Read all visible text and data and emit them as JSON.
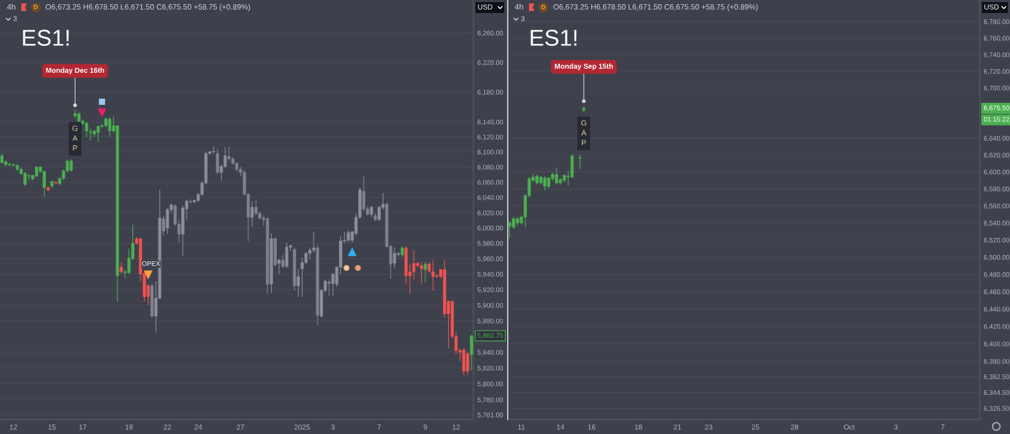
{
  "chart_data": [
    {
      "type": "candlestick",
      "title": "ES1!",
      "subtitle": "4h",
      "ylabel": "USD",
      "log": true,
      "grid": "y",
      "ylim": [
        5755,
        6305
      ],
      "yticks": [
        {
          "value": 6260,
          "label": "6,260.00"
        },
        {
          "value": 6220,
          "label": "6,220.00"
        },
        {
          "value": 6180,
          "label": "6,180.00"
        },
        {
          "value": 6140,
          "label": "6,140.00"
        },
        {
          "value": 6120,
          "label": "6,120.00"
        },
        {
          "value": 6100,
          "label": "6,100.00"
        },
        {
          "value": 6080,
          "label": "6,080.00"
        },
        {
          "value": 6060,
          "label": "6,060.00"
        },
        {
          "value": 6040,
          "label": "6,040.00"
        },
        {
          "value": 6020,
          "label": "6,020.00"
        },
        {
          "value": 6000,
          "label": "6,000.00"
        },
        {
          "value": 5980,
          "label": "5,980.00"
        },
        {
          "value": 5960,
          "label": "5,960.00"
        },
        {
          "value": 5940,
          "label": "5,940.00"
        },
        {
          "value": 5920,
          "label": "5,920.00"
        },
        {
          "value": 5900,
          "label": "5,900.00"
        },
        {
          "value": 5880,
          "label": "5,880.00"
        },
        {
          "value": 5840,
          "label": "5,840.00"
        },
        {
          "value": 5820,
          "label": "5,820.00"
        },
        {
          "value": 5800,
          "label": "5,800.00"
        },
        {
          "value": 5780,
          "label": "5,780.00"
        },
        {
          "value": 5761,
          "label": "5,761.00"
        }
      ],
      "categories": [
        null,
        null,
        null,
        "12",
        null,
        null,
        null,
        null,
        null,
        null,
        null,
        null,
        null,
        "15",
        null,
        null,
        null,
        null,
        null,
        null,
        null,
        "17",
        null,
        null,
        null,
        null,
        null,
        null,
        null,
        null,
        null,
        null,
        null,
        "19",
        null,
        null,
        null,
        null,
        null,
        null,
        null,
        null,
        null,
        "22",
        null,
        null,
        null,
        null,
        null,
        null,
        null,
        "24",
        null,
        null,
        null,
        null,
        null,
        null,
        null,
        null,
        null,
        null,
        "27",
        null,
        null,
        null,
        null,
        null,
        null,
        null,
        null,
        null,
        null,
        null,
        null,
        null,
        null,
        null,
        "2025",
        null,
        null,
        null,
        null,
        null,
        null,
        null,
        "3",
        null,
        null,
        null,
        null,
        null,
        null,
        null,
        null,
        null,
        null,
        null,
        "7",
        null,
        null,
        null,
        null,
        null,
        null,
        null,
        null,
        null,
        null,
        null,
        "9",
        null,
        null,
        null,
        null,
        null,
        null,
        null,
        "12",
        null,
        null,
        null,
        null
      ],
      "ohlc": [
        [
          6086,
          6098,
          6084,
          6095
        ],
        [
          6083,
          6089,
          6081,
          6087
        ],
        [
          6083,
          6085,
          6081,
          6084
        ],
        [
          6082,
          6085,
          6081,
          6083
        ],
        [
          6077,
          6084,
          6075,
          6082
        ],
        [
          6071,
          6079,
          6070,
          6077
        ],
        [
          6057,
          6073,
          6055,
          6072
        ],
        [
          6068,
          6070,
          6062,
          6069
        ],
        [
          6064,
          6070,
          6063,
          6069
        ],
        [
          6068,
          6081,
          6067,
          6080
        ],
        [
          6074,
          6081,
          6073,
          6080
        ],
        [
          6053,
          6076,
          6041,
          6074
        ],
        [
          6053,
          6054,
          6048,
          6050
        ],
        [
          6055,
          6062,
          6052,
          6061
        ],
        [
          6060,
          6061,
          6057,
          6059
        ],
        [
          6058,
          6066,
          6056,
          6065
        ],
        [
          6065,
          6077,
          6063,
          6075
        ],
        [
          6075,
          6090,
          6073,
          6088
        ],
        [
          6076,
          6090,
          6074,
          6088
        ],
        [
          6148,
          6156,
          6145,
          6151
        ],
        [
          6141,
          6153,
          6140,
          6151
        ],
        [
          6138,
          6143,
          6136,
          6141
        ],
        [
          6128,
          6140,
          6120,
          6138
        ],
        [
          6126,
          6131,
          6115,
          6127
        ],
        [
          6124,
          6129,
          6120,
          6128
        ],
        [
          6126,
          6135,
          6113,
          6134
        ],
        [
          6134,
          6137,
          6132,
          6135
        ],
        [
          6135,
          6146,
          6133,
          6144
        ],
        [
          6128,
          6146,
          6120,
          6144
        ],
        [
          6128,
          6147,
          6126,
          6135
        ],
        [
          5938,
          6136,
          5905,
          6135
        ],
        [
          5949,
          5956,
          5940,
          5943
        ],
        [
          5942,
          5946,
          5935,
          5943
        ],
        [
          5942,
          5973,
          5940,
          5961
        ],
        [
          5960,
          6004,
          5958,
          5980
        ],
        [
          5986,
          5988,
          5978,
          5980
        ],
        [
          5986,
          5987,
          5931,
          5940
        ],
        [
          5941,
          5942,
          5905,
          5911
        ],
        [
          5925,
          5927,
          5900,
          5911
        ],
        [
          5925,
          5928,
          5884,
          5886
        ],
        [
          5886,
          5931,
          5865,
          5909
        ],
        [
          5909,
          6050,
          5908,
          6013
        ],
        [
          6012,
          6016,
          5990,
          5996
        ],
        [
          6000,
          6026,
          5992,
          6024
        ],
        [
          6024,
          6032,
          6020,
          6030
        ],
        [
          6029,
          6031,
          6003,
          6005
        ],
        [
          6005,
          6012,
          5981,
          5992
        ],
        [
          5992,
          6029,
          5964,
          6026
        ],
        [
          6025,
          6037,
          6011,
          6035
        ],
        [
          6035,
          6038,
          6032,
          6034
        ],
        [
          6034,
          6037,
          6032,
          6036
        ],
        [
          6036,
          6046,
          6034,
          6044
        ],
        [
          6044,
          6061,
          6042,
          6059
        ],
        [
          6059,
          6100,
          6057,
          6098
        ],
        [
          6098,
          6102,
          6096,
          6100
        ],
        [
          6100,
          6108,
          6098,
          6101
        ],
        [
          6098,
          6104,
          6070,
          6073
        ],
        [
          6073,
          6083,
          6062,
          6081
        ],
        [
          6081,
          6106,
          6079,
          6095
        ],
        [
          6094,
          6107,
          6088,
          6091
        ],
        [
          6091,
          6093,
          6083,
          6085
        ],
        [
          6085,
          6086,
          6075,
          6077
        ],
        [
          6077,
          6080,
          6068,
          6073
        ],
        [
          6073,
          6076,
          6043,
          6044
        ],
        [
          6044,
          6046,
          5983,
          6014
        ],
        [
          6014,
          6035,
          6002,
          6027
        ],
        [
          6027,
          6037,
          6016,
          6019
        ],
        [
          6019,
          6021,
          6011,
          6013
        ],
        [
          6013,
          6016,
          6003,
          6011
        ],
        [
          6012,
          6014,
          5915,
          5927
        ],
        [
          5927,
          5993,
          5916,
          5986
        ],
        [
          5986,
          5988,
          5950,
          5952
        ],
        [
          5954,
          5960,
          5940,
          5958
        ],
        [
          5958,
          5965,
          5948,
          5950
        ],
        [
          5950,
          5981,
          5948,
          5975
        ],
        [
          5975,
          5978,
          5970,
          5977
        ],
        [
          5972,
          5974,
          5919,
          5925
        ],
        [
          5925,
          5947,
          5911,
          5937
        ],
        [
          5947,
          5961,
          5911,
          5955
        ],
        [
          5955,
          5969,
          5953,
          5967
        ],
        [
          5967,
          5974,
          5959,
          5971
        ],
        [
          5971,
          5995,
          5968,
          5974
        ],
        [
          5974,
          5978,
          5874,
          5887
        ],
        [
          5886,
          5921,
          5884,
          5919
        ],
        [
          5919,
          5933,
          5916,
          5931
        ],
        [
          5930,
          5933,
          5912,
          5928
        ],
        [
          5928,
          5941,
          5912,
          5940
        ],
        [
          5927,
          5950,
          5924,
          5949
        ],
        [
          5949,
          5989,
          5940,
          5983
        ],
        [
          5983,
          5995,
          5980,
          5984
        ],
        [
          5984,
          5998,
          5982,
          5994
        ],
        [
          5984,
          5996,
          5981,
          5995
        ],
        [
          5993,
          6019,
          5990,
          6014
        ],
        [
          6014,
          6053,
          6012,
          6050
        ],
        [
          6048,
          6068,
          6022,
          6025
        ],
        [
          6025,
          6029,
          6016,
          6018
        ],
        [
          6018,
          6029,
          6014,
          6027
        ],
        [
          6016,
          6019,
          6009,
          6011
        ],
        [
          6011,
          6029,
          6009,
          6027
        ],
        [
          6027,
          6046,
          6024,
          6031
        ],
        [
          6031,
          6033,
          5974,
          5976
        ],
        [
          5976,
          5978,
          5934,
          5953
        ],
        [
          5954,
          5974,
          5947,
          5967
        ],
        [
          5967,
          5969,
          5963,
          5965
        ],
        [
          5965,
          5976,
          5962,
          5974
        ],
        [
          5974,
          5976,
          5927,
          5938
        ],
        [
          5943,
          5953,
          5915,
          5938
        ],
        [
          5954,
          5971,
          5933,
          5943
        ],
        [
          5954,
          5956,
          5949,
          5951
        ],
        [
          5951,
          5956,
          5928,
          5947
        ],
        [
          5946,
          5956,
          5930,
          5953
        ],
        [
          5953,
          5955,
          5942,
          5944
        ],
        [
          5943,
          5958,
          5919,
          5937
        ],
        [
          5938,
          5940,
          5935,
          5937
        ],
        [
          5946,
          5947,
          5935,
          5937
        ],
        [
          5946,
          5958,
          5884,
          5889
        ],
        [
          5905,
          5906,
          5845,
          5889
        ],
        [
          5905,
          5906,
          5858,
          5860
        ],
        [
          5860,
          5865,
          5837,
          5842
        ],
        [
          5842,
          5845,
          5829,
          5840
        ],
        [
          5843,
          5845,
          5811,
          5816
        ],
        [
          5838,
          5840,
          5811,
          5816
        ],
        [
          5837,
          5862,
          5817,
          5860.75
        ]
      ],
      "colors": [
        "#4caf50",
        "#4caf50",
        "#4caf50",
        "#4caf50",
        "#4caf50",
        "#4caf50",
        "#4caf50",
        "#4caf50",
        "#4caf50",
        "#4caf50",
        "#4caf50",
        "#4caf50",
        "#f05350",
        "#4caf50",
        "#f05350",
        "#4caf50",
        "#4caf50",
        "#4caf50",
        "#4caf50",
        "#4caf50",
        "#4caf50",
        "#4caf50",
        "#4caf50",
        "#4caf50",
        "#4caf50",
        "#4caf50",
        "#4caf50",
        "#4caf50",
        "#4caf50",
        "#4caf50",
        "#4caf50",
        "#f05350",
        "#4caf50",
        "#4caf50",
        "#4caf50",
        "#f05350",
        "#f05350",
        "#f05350",
        "#f05350",
        "#80838d",
        "#8c8f99",
        "#8c8f99",
        "#80838d",
        "#8c8f99",
        "#8c8f99",
        "#80838d",
        "#80838d",
        "#8c8f99",
        "#8c8f99",
        "#80838d",
        "#8c8f99",
        "#8c8f99",
        "#8c8f99",
        "#8c8f99",
        "#8c8f99",
        "#8c8f99",
        "#80838d",
        "#8c8f99",
        "#8c8f99",
        "#80838d",
        "#80838d",
        "#80838d",
        "#80838d",
        "#80838d",
        "#80838d",
        "#8c8f99",
        "#80838d",
        "#80838d",
        "#80838d",
        "#80838d",
        "#8c8f99",
        "#80838d",
        "#8c8f99",
        "#80838d",
        "#8c8f99",
        "#8c8f99",
        "#80838d",
        "#8c8f99",
        "#8c8f99",
        "#8c8f99",
        "#8c8f99",
        "#8c8f99",
        "#80838d",
        "#8c8f99",
        "#8c8f99",
        "#80838d",
        "#8c8f99",
        "#8c8f99",
        "#8c8f99",
        "#8c8f99",
        "#8c8f99",
        "#8c8f99",
        "#8c8f99",
        "#8c8f99",
        "#80838d",
        "#80838d",
        "#8c8f99",
        "#80838d",
        "#8c8f99",
        "#8c8f99",
        "#80838d",
        "#80838d",
        "#8c8f99",
        "#80838d",
        "#4caf50",
        "#f05350",
        "#f05350",
        "#f05350",
        "#f05350",
        "#f05350",
        "#4caf50",
        "#f05350",
        "#f05350",
        "#f05350",
        "#f05350",
        "#f05350",
        "#f05350",
        "#f05350",
        "#f05350",
        "#f05350",
        "#f05350",
        "#f05350",
        "#4caf50"
      ],
      "series": [
        {
          "type": "scatter",
          "color": "#e91e63",
          "marker": "triangle-down",
          "values": [
            null,
            null,
            null,
            null,
            null,
            null,
            null,
            null,
            null,
            null,
            null,
            null,
            null,
            null,
            null,
            null,
            null,
            null,
            null,
            null,
            null,
            null,
            null,
            null,
            null,
            null,
            6152,
            null,
            null,
            null,
            null,
            null,
            null,
            null,
            null,
            null,
            null,
            null,
            null,
            null,
            null,
            null,
            null,
            null,
            null,
            null,
            null,
            null,
            null,
            null,
            null,
            null,
            null,
            null,
            null,
            null,
            null,
            null,
            null,
            null,
            null,
            null,
            null,
            null,
            null,
            null,
            null,
            null,
            null,
            null,
            null,
            null,
            null,
            null,
            null,
            null,
            null,
            null,
            null,
            null,
            null,
            null,
            null,
            null,
            null,
            null,
            null,
            null,
            null,
            null,
            null,
            null,
            null,
            null,
            null,
            null,
            null,
            null,
            null,
            null,
            null,
            null,
            null,
            null,
            null,
            null,
            null,
            null,
            null,
            null,
            null,
            null,
            null,
            null,
            null,
            null,
            null,
            null,
            null,
            null,
            null,
            null,
            null
          ]
        },
        {
          "type": "scatter",
          "color": "#9cc8f0",
          "marker": "square",
          "values": [
            null,
            null,
            null,
            null,
            null,
            null,
            null,
            null,
            null,
            null,
            null,
            null,
            null,
            null,
            null,
            null,
            null,
            null,
            null,
            null,
            null,
            null,
            null,
            null,
            null,
            null,
            6167,
            null,
            null,
            null,
            null,
            null,
            null,
            null,
            null,
            null,
            null,
            null,
            null,
            null,
            null,
            null,
            null,
            null,
            null,
            null,
            null,
            null,
            null,
            null,
            null,
            null,
            null,
            null,
            null,
            null,
            null,
            null,
            null,
            null,
            null,
            null,
            null,
            null,
            null,
            null,
            null,
            null,
            null,
            null,
            null,
            null,
            null,
            null,
            null,
            null,
            null,
            null,
            null,
            null,
            null,
            null,
            null,
            null,
            null,
            null,
            null,
            null,
            null,
            null,
            null,
            null,
            null,
            null,
            null,
            null,
            null,
            null,
            null,
            null,
            null,
            null,
            null,
            null,
            null,
            null,
            null,
            null,
            null,
            null,
            null,
            null,
            null,
            null,
            null,
            null,
            null,
            null,
            null,
            null,
            null,
            null,
            null
          ]
        },
        {
          "type": "scatter",
          "name": "OPEX",
          "color": "#ffa040",
          "marker": "triangle-down",
          "values": [
            null,
            null,
            null,
            null,
            null,
            null,
            null,
            null,
            null,
            null,
            null,
            null,
            null,
            null,
            null,
            null,
            null,
            null,
            null,
            null,
            null,
            null,
            null,
            null,
            null,
            null,
            null,
            null,
            null,
            null,
            null,
            null,
            null,
            null,
            null,
            null,
            null,
            null,
            5939,
            null,
            null,
            null,
            null,
            null,
            null,
            null,
            null,
            null,
            null,
            null,
            null,
            null,
            null,
            null,
            null,
            null,
            null,
            null,
            null,
            null,
            null,
            null,
            null,
            null,
            null,
            null,
            null,
            null,
            null,
            null,
            null,
            null,
            null,
            null,
            null,
            null,
            null,
            null,
            null,
            null,
            null,
            null,
            null,
            null,
            null,
            null,
            null,
            null,
            null,
            null,
            null,
            null,
            null,
            null,
            null,
            null,
            null,
            null,
            null,
            null,
            null,
            null,
            null,
            null,
            null,
            null,
            null,
            null,
            null,
            null,
            null,
            null,
            null,
            null,
            null,
            null,
            null,
            null,
            null,
            null,
            null,
            null,
            null
          ]
        },
        {
          "type": "scatter",
          "color": "#29b6f6",
          "marker": "triangle",
          "values": [
            null,
            null,
            null,
            null,
            null,
            null,
            null,
            null,
            null,
            null,
            null,
            null,
            null,
            null,
            null,
            null,
            null,
            null,
            null,
            null,
            null,
            null,
            null,
            null,
            null,
            null,
            null,
            null,
            null,
            null,
            null,
            null,
            null,
            null,
            null,
            null,
            null,
            null,
            null,
            null,
            null,
            null,
            null,
            null,
            null,
            null,
            null,
            null,
            null,
            null,
            null,
            null,
            null,
            null,
            null,
            null,
            null,
            null,
            null,
            null,
            null,
            null,
            null,
            null,
            null,
            null,
            null,
            null,
            null,
            null,
            null,
            null,
            null,
            null,
            null,
            null,
            null,
            null,
            null,
            null,
            null,
            null,
            null,
            null,
            null,
            null,
            null,
            null,
            null,
            null,
            null,
            5969,
            null,
            null,
            null,
            null,
            null,
            null,
            null,
            null,
            null,
            null,
            null,
            null,
            null,
            null,
            null,
            null,
            null,
            null,
            null,
            null,
            null,
            null,
            null,
            null,
            null,
            null,
            null,
            null,
            null,
            null,
            null
          ]
        }
      ],
      "annotations": [
        "O6,673.25 H6,678.50 L6,671.50 C6,675.50 +58.75 (+0.89%)",
        "D",
        "3",
        "Monday Dec 16th",
        "GAP",
        {
          "text": "5,860.75",
          "y": 5860.75
        }
      ]
    },
    {
      "type": "candlestick",
      "title": "ES1!",
      "subtitle": "4h",
      "ylabel": "USD",
      "log": true,
      "grid": "y",
      "ylim": [
        6313.7,
        6806.3
      ],
      "yticks": [
        {
          "value": 6780,
          "label": "6,780.00"
        },
        {
          "value": 6760,
          "label": "6,760.00"
        },
        {
          "value": 6740,
          "label": "6,740.00"
        },
        {
          "value": 6720,
          "label": "6,720.00"
        },
        {
          "value": 6700,
          "label": "6,700.00"
        },
        {
          "value": 6640,
          "label": "6,640.00"
        },
        {
          "value": 6620,
          "label": "6,620.00"
        },
        {
          "value": 6600,
          "label": "6,600.00"
        },
        {
          "value": 6580,
          "label": "6,580.00"
        },
        {
          "value": 6560,
          "label": "6,560.00"
        },
        {
          "value": 6540,
          "label": "6,540.00"
        },
        {
          "value": 6520,
          "label": "6,520.00"
        },
        {
          "value": 6500,
          "label": "6,500.00"
        },
        {
          "value": 6480,
          "label": "6,480.00"
        },
        {
          "value": 6460,
          "label": "6,460.00"
        },
        {
          "value": 6440,
          "label": "6,440.00"
        },
        {
          "value": 6420,
          "label": "6,420.00"
        },
        {
          "value": 6400,
          "label": "6,400.00"
        },
        {
          "value": 6380,
          "label": "6,380.00"
        },
        {
          "value": 6362.5,
          "label": "6,362.50"
        },
        {
          "value": 6344.5,
          "label": "6,344.50"
        },
        {
          "value": 6326.5,
          "label": "6,326.50"
        }
      ],
      "categories": [
        null,
        null,
        null,
        "11",
        null,
        null,
        null,
        null,
        null,
        null,
        null,
        null,
        null,
        "14",
        null,
        null,
        null,
        null,
        null,
        null,
        null,
        "16",
        null,
        null,
        null,
        null,
        null,
        null,
        null,
        null,
        null,
        null,
        null,
        "18",
        null,
        null,
        null,
        null,
        null,
        null,
        null,
        null,
        null,
        "21",
        null,
        null,
        null,
        null,
        null,
        null,
        null,
        "23",
        null,
        null,
        null,
        null,
        null,
        null,
        null,
        null,
        null,
        null,
        null,
        "25",
        null,
        null,
        null,
        null,
        null,
        null,
        null,
        null,
        null,
        "28",
        null,
        null,
        null,
        null,
        null,
        null,
        null,
        null,
        null,
        null,
        null,
        null,
        null,
        "Oct",
        null,
        null,
        null,
        null,
        null,
        null,
        null,
        null,
        null,
        null,
        null,
        "3",
        null,
        null,
        null,
        null,
        null,
        null,
        null,
        null,
        null,
        null,
        null,
        "7",
        null,
        null,
        null,
        null,
        null,
        null,
        null,
        null,
        null
      ],
      "ohlc": [
        [
          6536,
          6542,
          6523,
          6540
        ],
        [
          6535,
          6547,
          6533,
          6545
        ],
        [
          6540,
          6547,
          6537,
          6545
        ],
        [
          6540,
          6549,
          6538,
          6547
        ],
        [
          6547,
          6574,
          6535,
          6572
        ],
        [
          6572,
          6594,
          6570,
          6592
        ],
        [
          6590,
          6598,
          6588,
          6594
        ],
        [
          6587,
          6597,
          6585,
          6595
        ],
        [
          6587,
          6595,
          6585,
          6594
        ],
        [
          6583,
          6595,
          6578,
          6593
        ],
        [
          6583,
          6594,
          6581,
          6593
        ],
        [
          6592,
          6599,
          6590,
          6597
        ],
        [
          6587,
          6605,
          6585,
          6597
        ],
        [
          6587,
          6593,
          6585,
          6591
        ],
        [
          6590,
          6597,
          6588,
          6596
        ],
        [
          6594,
          6601,
          6584,
          6595
        ],
        [
          6594,
          6621,
          6593,
          6619
        ],
        null,
        [
          6616,
          6620,
          6603,
          6616.75
        ],
        [
          6673.25,
          6678.5,
          6671.5,
          6675.5
        ],
        null,
        null,
        null,
        null,
        null,
        null,
        null,
        null,
        null,
        null,
        null,
        null,
        null,
        null,
        null,
        null,
        null,
        null,
        null,
        null,
        null,
        null,
        null,
        null,
        null,
        null,
        null,
        null,
        null,
        null,
        null,
        null,
        null,
        null,
        null,
        null,
        null,
        null,
        null,
        null,
        null,
        null,
        null,
        null,
        null,
        null,
        null,
        null,
        null,
        null,
        null,
        null,
        null,
        null,
        null,
        null,
        null,
        null,
        null,
        null,
        null,
        null,
        null,
        null,
        null,
        null,
        null,
        null,
        null,
        null,
        null,
        null,
        null,
        null,
        null,
        null,
        null,
        null,
        null,
        null,
        null,
        null,
        null,
        null,
        null,
        null,
        null,
        null,
        null,
        null,
        null,
        null,
        null,
        null,
        null,
        null,
        null,
        null,
        null,
        null,
        null
      ],
      "color": "#4caf50",
      "annotations": [
        "O6,673.25 H6,678.50 L6,671.50 C6,675.50 +58.75 (+0.89%)",
        "D",
        "3",
        "Monday Sep 15th",
        "GAP",
        {
          "text": "6,675.50",
          "y": 6675.5
        },
        "01:15:22"
      ]
    }
  ]
}
